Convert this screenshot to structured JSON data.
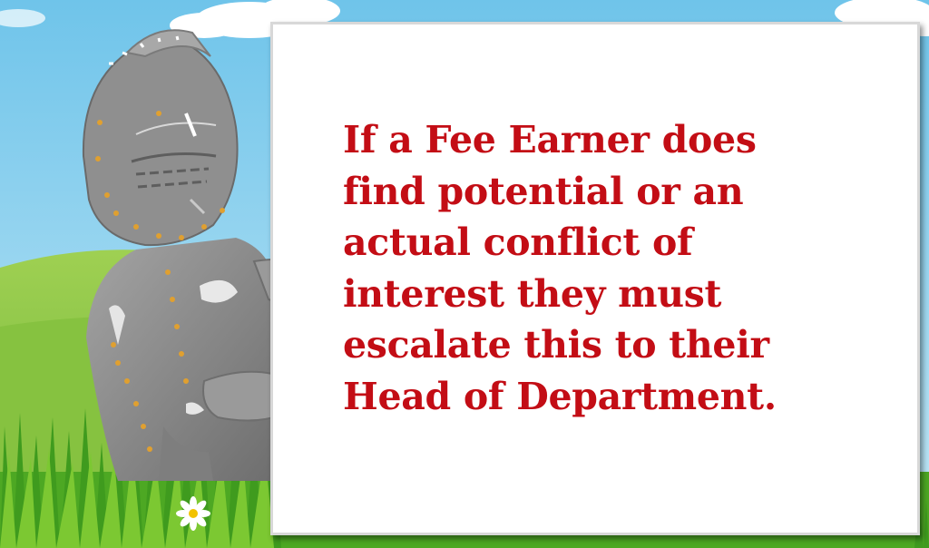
{
  "slide": {
    "message_lines": [
      "If a Fee Earner does",
      "find potential or an",
      "actual conflict of",
      "interest they must",
      "escalate this to their",
      "Head of Department."
    ]
  },
  "colors": {
    "sky_top": "#6fc4ea",
    "sky_bottom": "#bfe6f6",
    "hill": "#8ec63f",
    "grass_dark": "#3f9b1e",
    "grass_light": "#7cc832",
    "armor": "#8c8c8c",
    "rivets": "#e0a030",
    "message_text": "#c30d15",
    "card": "#ffffff"
  }
}
